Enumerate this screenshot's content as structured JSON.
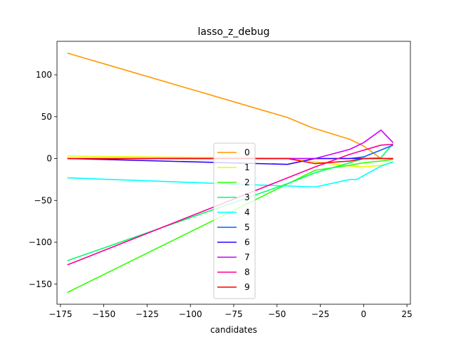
{
  "chart_data": {
    "type": "line",
    "title": "lasso_z_debug",
    "xlabel": "candidates",
    "ylabel": "",
    "xlim": [
      -177,
      27
    ],
    "ylim": [
      -174,
      140
    ],
    "xticks": [
      -175,
      -150,
      -125,
      -100,
      -75,
      -50,
      -25,
      0,
      25
    ],
    "xtick_labels": [
      "−175",
      "−150",
      "−125",
      "−100",
      "−75",
      "−50",
      "−25",
      "0",
      "25"
    ],
    "yticks": [
      -150,
      -100,
      -50,
      0,
      50,
      100
    ],
    "ytick_labels": [
      "−150",
      "−100",
      "−50",
      "0",
      "50",
      "100"
    ],
    "grid": false,
    "legend_position": "lower-center",
    "series": [
      {
        "name": "0",
        "color": "#ff9900",
        "x": [
          -171,
          -44,
          -30,
          -8,
          0,
          10,
          17
        ],
        "y": [
          126,
          49,
          37,
          23,
          15,
          0,
          0
        ]
      },
      {
        "name": "1",
        "color": "#e5ff00",
        "x": [
          -171,
          -44,
          -8,
          0,
          10,
          17
        ],
        "y": [
          3,
          0,
          -9,
          -10,
          -8,
          -5
        ]
      },
      {
        "name": "2",
        "color": "#33ff00",
        "x": [
          -171,
          -28,
          -8,
          0,
          10,
          17
        ],
        "y": [
          -160,
          -14,
          -8,
          -5,
          -3,
          -1
        ]
      },
      {
        "name": "3",
        "color": "#00ff66",
        "x": [
          -171,
          -44,
          -28,
          -8,
          0,
          10,
          17
        ],
        "y": [
          -122,
          -30,
          -17,
          -5,
          0,
          1,
          18
        ]
      },
      {
        "name": "4",
        "color": "#00ffff",
        "x": [
          -171,
          -28,
          -8,
          -4,
          10,
          17
        ],
        "y": [
          -23,
          -34,
          -25,
          -25,
          -9,
          -4
        ]
      },
      {
        "name": "5",
        "color": "#0066ff",
        "x": [
          -171,
          -28,
          -8,
          0,
          17
        ],
        "y": [
          0,
          0,
          0,
          2,
          16
        ]
      },
      {
        "name": "6",
        "color": "#3300ff",
        "x": [
          -171,
          -44,
          -28,
          -8,
          0,
          17
        ],
        "y": [
          0,
          -7,
          0,
          0,
          0,
          0
        ]
      },
      {
        "name": "7",
        "color": "#cc00ff",
        "x": [
          -171,
          -28,
          -8,
          0,
          10,
          17
        ],
        "y": [
          0,
          0,
          11,
          19,
          34,
          19
        ]
      },
      {
        "name": "8",
        "color": "#ff0099",
        "x": [
          -171,
          -28,
          -8,
          0,
          10,
          17
        ],
        "y": [
          -127,
          -10,
          5,
          10,
          16,
          17
        ]
      },
      {
        "name": "9",
        "color": "#ff0000",
        "x": [
          -171,
          -44,
          -28,
          -8,
          0,
          10,
          17
        ],
        "y": [
          0,
          0,
          -6,
          -3,
          0,
          0,
          0
        ]
      }
    ]
  }
}
